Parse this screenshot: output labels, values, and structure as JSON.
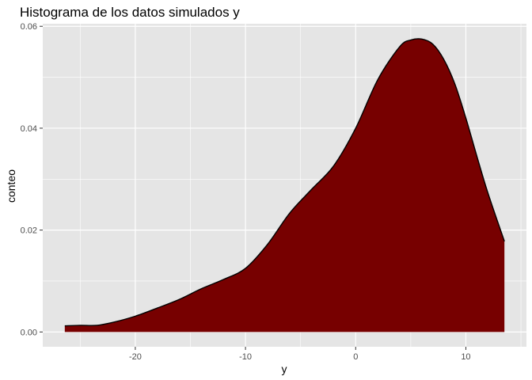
{
  "chart_data": {
    "type": "area",
    "title": "Histograma de los datos simulados y",
    "xlabel": "y",
    "ylabel": "conteo",
    "xlim": [
      -28.4,
      15.5
    ],
    "ylim": [
      -0.0029,
      0.0605
    ],
    "x_ticks": [
      {
        "value": -20,
        "label": "-20"
      },
      {
        "value": -10,
        "label": "-10"
      },
      {
        "value": 0,
        "label": "0"
      },
      {
        "value": 10,
        "label": "10"
      }
    ],
    "y_ticks": [
      {
        "value": 0.0,
        "label": "0.00"
      },
      {
        "value": 0.02,
        "label": "0.02"
      },
      {
        "value": 0.04,
        "label": "0.04"
      },
      {
        "value": 0.06,
        "label": "0.06"
      }
    ],
    "grid": true,
    "background": "#e5e5e5",
    "fill_color": "#770000",
    "line_color": "#000000",
    "series": [
      {
        "x": [
          -26.4,
          -25.0,
          -23.5,
          -22.0,
          -20.0,
          -18.0,
          -16.0,
          -14.0,
          -12.0,
          -10.0,
          -8.0,
          -6.0,
          -4.0,
          -2.0,
          0.0,
          2.0,
          4.0,
          5.0,
          6.0,
          7.0,
          8.0,
          9.0,
          10.0,
          11.0,
          12.0,
          13.5
        ],
        "y": [
          0.0012,
          0.0013,
          0.0013,
          0.0019,
          0.0031,
          0.0047,
          0.0064,
          0.0085,
          0.0103,
          0.0125,
          0.0172,
          0.0233,
          0.028,
          0.0326,
          0.04,
          0.0495,
          0.056,
          0.0573,
          0.0575,
          0.0565,
          0.0535,
          0.0487,
          0.042,
          0.0345,
          0.0273,
          0.0178
        ]
      }
    ]
  }
}
